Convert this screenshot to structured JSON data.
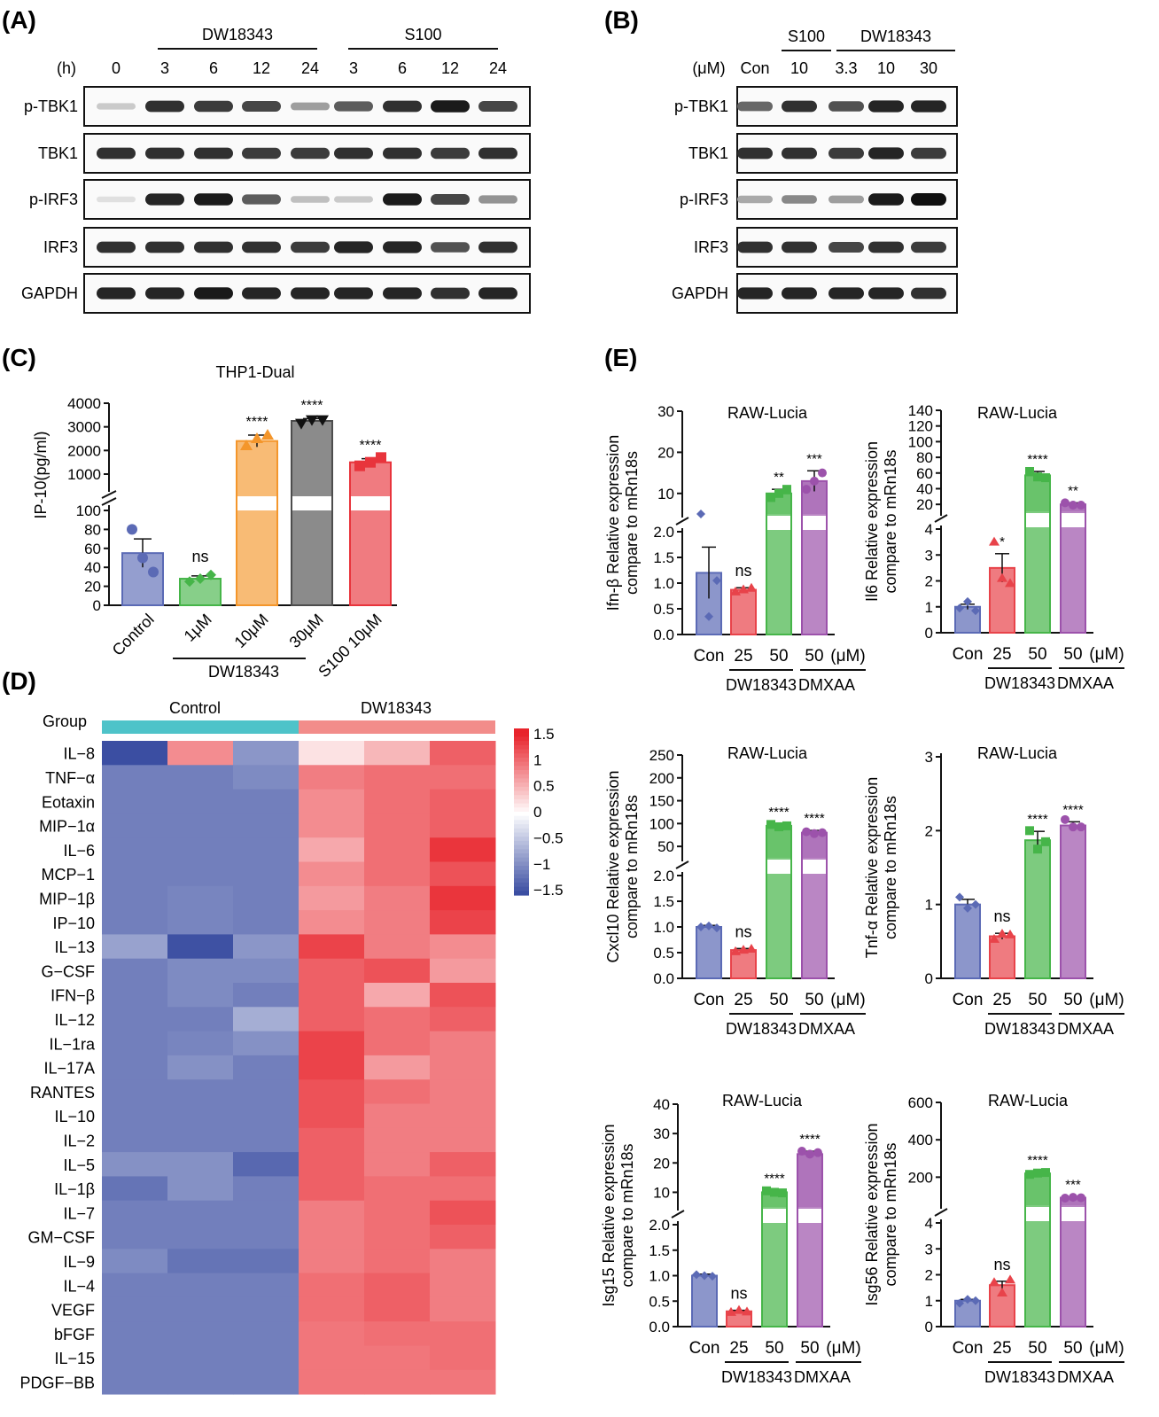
{
  "colors": {
    "con": "#5b6ab5",
    "dw25": "#e8434a",
    "dw50": "#46b549",
    "dmxaa": "#9c52ab",
    "c1": "#5b6ab5",
    "c2": "#46b549",
    "c3": "#f4962b",
    "c4": "#4d4d4d",
    "c5": "#e8343c",
    "grpControl": "#4ec3c9",
    "grpDW": "#f28c8a",
    "heatLow": "#3b4ea2",
    "heatMid": "#ffffff",
    "heatHigh": "#e8232b"
  },
  "panelA": {
    "label": "(A)",
    "groups": [
      "DW18343",
      "S100"
    ],
    "time_unit": "(h)",
    "lanes": [
      "0",
      "3",
      "6",
      "12",
      "24",
      "3",
      "6",
      "12",
      "24"
    ],
    "rows": [
      "p-TBK1",
      "TBK1",
      "p-IRF3",
      "IRF3",
      "GAPDH"
    ],
    "bands": [
      [
        0.15,
        0.85,
        0.8,
        0.75,
        0.35,
        0.65,
        0.85,
        0.95,
        0.75
      ],
      [
        0.85,
        0.85,
        0.85,
        0.8,
        0.8,
        0.85,
        0.85,
        0.8,
        0.85
      ],
      [
        0.05,
        0.9,
        0.95,
        0.65,
        0.2,
        0.15,
        0.95,
        0.75,
        0.4
      ],
      [
        0.85,
        0.85,
        0.85,
        0.85,
        0.8,
        0.9,
        0.9,
        0.7,
        0.85
      ],
      [
        0.9,
        0.9,
        0.95,
        0.9,
        0.9,
        0.9,
        0.9,
        0.85,
        0.9
      ]
    ]
  },
  "panelB": {
    "label": "(B)",
    "groups": [
      "S100",
      "DW18343"
    ],
    "conc_unit": "(μM)",
    "lanes": [
      "Con",
      "10",
      "3.3",
      "10",
      "30"
    ],
    "rows": [
      "p-TBK1",
      "TBK1",
      "p-IRF3",
      "IRF3",
      "GAPDH"
    ],
    "bands": [
      [
        0.6,
        0.85,
        0.7,
        0.9,
        0.9
      ],
      [
        0.85,
        0.85,
        0.8,
        0.9,
        0.8
      ],
      [
        0.3,
        0.45,
        0.35,
        0.95,
        1.0
      ],
      [
        0.85,
        0.85,
        0.75,
        0.85,
        0.8
      ],
      [
        0.9,
        0.9,
        0.9,
        0.9,
        0.85
      ]
    ]
  },
  "panelC": {
    "label": "(C)",
    "chart_data": {
      "type": "bar",
      "title": "THP1-Dual",
      "ylabel": "IP-10(pg/ml)",
      "categories": [
        "Control",
        "1μM",
        "10μM",
        "30μM",
        "S100 10μM"
      ],
      "values": [
        55,
        28,
        2400,
        3250,
        1500
      ],
      "errors": [
        15,
        3,
        250,
        100,
        150
      ],
      "points": [
        [
          80,
          50,
          35
        ],
        [
          25,
          28,
          32
        ],
        [
          2200,
          2500,
          2650
        ],
        [
          3150,
          3300,
          3300
        ],
        [
          1350,
          1500,
          1700
        ]
      ],
      "significance": [
        "",
        "ns",
        "****",
        "****",
        "****"
      ],
      "lower_ticks": [
        0,
        20,
        40,
        60,
        80,
        100
      ],
      "upper_ticks": [
        1000,
        2000,
        3000,
        4000
      ],
      "group_label": "DW18343"
    }
  },
  "panelD": {
    "label": "(D)",
    "group_title": "Group",
    "groups": [
      "Control",
      "DW18343"
    ],
    "legend_ticks": [
      "1.5",
      "1",
      "0.5",
      "0",
      "−0.5",
      "−1",
      "−1.5"
    ],
    "chart_data": {
      "type": "heatmap",
      "rows": [
        "IL−8",
        "TNF−α",
        "Eotaxin",
        "MIP−1α",
        "IL−6",
        "MCP−1",
        "MIP−1β",
        "IP−10",
        "IL−13",
        "G−CSF",
        "IFN−β",
        "IL−12",
        "IL−1ra",
        "IL−17A",
        "RANTES",
        "IL−10",
        "IL−2",
        "IL−5",
        "IL−1β",
        "IL−7",
        "GM−CSF",
        "IL−9",
        "IL−4",
        "VEGF",
        "bFGF",
        "IL−15",
        "PDGF−BB"
      ],
      "values": [
        [
          -1.6,
          0.8,
          -0.9,
          0.2,
          0.5,
          1.1
        ],
        [
          -1.1,
          -1.1,
          -1.0,
          0.9,
          1.0,
          1.0
        ],
        [
          -1.1,
          -1.1,
          -1.1,
          0.8,
          1.0,
          1.1
        ],
        [
          -1.1,
          -1.1,
          -1.1,
          0.8,
          1.0,
          1.1
        ],
        [
          -1.1,
          -1.1,
          -1.1,
          0.6,
          1.0,
          1.4
        ],
        [
          -1.1,
          -1.1,
          -1.1,
          0.8,
          1.0,
          1.2
        ],
        [
          -1.1,
          -1.05,
          -1.1,
          0.7,
          0.9,
          1.4
        ],
        [
          -1.1,
          -1.05,
          -1.1,
          0.8,
          0.9,
          1.3
        ],
        [
          -0.8,
          -1.5,
          -0.9,
          1.3,
          0.9,
          0.8
        ],
        [
          -1.1,
          -1.0,
          -1.0,
          1.1,
          1.2,
          0.7
        ],
        [
          -1.1,
          -1.0,
          -1.1,
          1.1,
          0.6,
          1.2
        ],
        [
          -1.1,
          -1.1,
          -0.7,
          1.1,
          1.0,
          1.1
        ],
        [
          -1.1,
          -1.05,
          -0.95,
          1.3,
          1.0,
          0.9
        ],
        [
          -1.1,
          -0.95,
          -1.1,
          1.3,
          0.7,
          0.9
        ],
        [
          -1.1,
          -1.1,
          -1.1,
          1.2,
          1.0,
          0.9
        ],
        [
          -1.1,
          -1.1,
          -1.1,
          1.2,
          0.9,
          0.9
        ],
        [
          -1.1,
          -1.1,
          -1.1,
          1.1,
          0.9,
          0.9
        ],
        [
          -0.95,
          -0.95,
          -1.3,
          1.1,
          0.9,
          1.1
        ],
        [
          -1.2,
          -0.95,
          -1.1,
          1.1,
          1.0,
          1.0
        ],
        [
          -1.1,
          -1.1,
          -1.1,
          0.9,
          1.0,
          1.2
        ],
        [
          -1.1,
          -1.1,
          -1.1,
          0.9,
          1.0,
          1.1
        ],
        [
          -1.0,
          -1.2,
          -1.2,
          0.9,
          1.0,
          0.9
        ],
        [
          -1.1,
          -1.1,
          -1.1,
          1.0,
          1.1,
          0.9
        ],
        [
          -1.1,
          -1.1,
          -1.1,
          1.0,
          1.1,
          0.9
        ],
        [
          -1.1,
          -1.1,
          -1.1,
          0.95,
          1.0,
          1.0
        ],
        [
          -1.1,
          -1.1,
          -1.1,
          0.95,
          0.95,
          1.0
        ],
        [
          -1.1,
          -1.1,
          -1.1,
          0.95,
          0.95,
          0.95
        ]
      ]
    }
  },
  "panelE": {
    "label": "(E)",
    "x_tick_labels": [
      "Con",
      "25",
      "50",
      "50",
      "(μM)"
    ],
    "x_group_labels": [
      "DW18343",
      "DMXAA"
    ],
    "chart_data": [
      {
        "type": "bar",
        "title": "RAW-Lucia",
        "ylabel": [
          "Ifn-β Relative expression",
          "compare to mRn18s"
        ],
        "categories": [
          "Con",
          "25",
          "50",
          "50"
        ],
        "values": [
          1.2,
          0.87,
          10,
          13
        ],
        "errors": [
          0.5,
          0.04,
          1,
          2.5
        ],
        "points": [
          [
            2.3,
            0.35,
            1.05
          ],
          [
            0.83,
            0.87,
            0.9
          ],
          [
            9,
            10,
            11
          ],
          [
            11,
            13,
            15
          ]
        ],
        "significance": [
          "",
          "ns",
          "**",
          "***"
        ],
        "lower_ticks": [
          "0.0",
          "0.5",
          "1.0",
          "1.5",
          "2.0"
        ],
        "upper_ticks": [
          "10",
          "20",
          "30"
        ]
      },
      {
        "type": "bar",
        "title": "RAW-Lucia",
        "ylabel": [
          "Il6 Relative expression",
          "compare to mRn18s"
        ],
        "categories": [
          "Con",
          "25",
          "50",
          "50"
        ],
        "values": [
          1,
          2.5,
          57,
          20
        ],
        "errors": [
          0.1,
          0.55,
          5,
          2
        ],
        "points": [
          [
            0.95,
            1.2,
            0.85
          ],
          [
            3.5,
            2.1,
            1.9
          ],
          [
            62,
            55,
            54
          ],
          [
            22,
            19,
            19
          ]
        ],
        "significance": [
          "",
          "*",
          "****",
          "**"
        ],
        "lower_ticks": [
          "0",
          "1",
          "2",
          "3",
          "4"
        ],
        "upper_ticks": [
          "20",
          "40",
          "60",
          "80",
          "100",
          "120",
          "140"
        ]
      },
      {
        "type": "bar",
        "title": "RAW-Lucia",
        "ylabel": [
          "Cxcl10 Relative expression",
          "compare to mRn18s"
        ],
        "categories": [
          "Con",
          "25",
          "50",
          "50"
        ],
        "values": [
          1,
          0.55,
          95,
          80
        ],
        "errors": [
          0.03,
          0.03,
          4,
          5
        ],
        "points": [
          [
            1,
            1.02,
            0.98
          ],
          [
            0.52,
            0.55,
            0.57
          ],
          [
            98,
            93,
            95
          ],
          [
            82,
            78,
            80
          ]
        ],
        "significance": [
          "",
          "ns",
          "****",
          "****"
        ],
        "lower_ticks": [
          "0.0",
          "0.5",
          "1.0",
          "1.5",
          "2.0"
        ],
        "upper_ticks": [
          "50",
          "100",
          "150",
          "200",
          "250"
        ]
      },
      {
        "type": "bar",
        "title": "RAW-Lucia",
        "ylabel": [
          "Tnf-α Relative expression",
          "compare to mRn18s"
        ],
        "categories": [
          "Con",
          "25",
          "50",
          "50"
        ],
        "values": [
          1,
          0.57,
          1.87,
          2.07
        ],
        "errors": [
          0.07,
          0.04,
          0.12,
          0.05
        ],
        "points": [
          [
            1.1,
            0.95,
            1.0
          ],
          [
            0.53,
            0.6,
            0.59
          ],
          [
            2.0,
            1.75,
            1.85
          ],
          [
            2.15,
            2.05,
            2.05
          ]
        ],
        "significance": [
          "",
          "ns",
          "****",
          "****"
        ],
        "lower_ticks": [
          "0",
          "1",
          "2",
          "3"
        ],
        "upper_ticks": []
      },
      {
        "type": "bar",
        "title": "RAW-Lucia",
        "ylabel": [
          "Isg15 Relative expression",
          "compare to mRn18s"
        ],
        "categories": [
          "Con",
          "25",
          "50",
          "50"
        ],
        "values": [
          1,
          0.3,
          10,
          23
        ],
        "errors": [
          0.03,
          0.02,
          0.6,
          1
        ],
        "points": [
          [
            1.02,
            1.0,
            0.99
          ],
          [
            0.28,
            0.32,
            0.29
          ],
          [
            10.5,
            10,
            9.8
          ],
          [
            24,
            23,
            23.5
          ]
        ],
        "significance": [
          "",
          "ns",
          "****",
          "****"
        ],
        "lower_ticks": [
          "0.0",
          "0.5",
          "1.0",
          "1.5",
          "2.0"
        ],
        "upper_ticks": [
          "10",
          "20",
          "30",
          "40"
        ]
      },
      {
        "type": "bar",
        "title": "RAW-Lucia",
        "ylabel": [
          "Isg56 Relative expression",
          "compare to mRn18s"
        ],
        "categories": [
          "Con",
          "25",
          "50",
          "50"
        ],
        "values": [
          1,
          1.6,
          220,
          90
        ],
        "errors": [
          0.05,
          0.15,
          5,
          4
        ],
        "points": [
          [
            0.9,
            1.05,
            1.0
          ],
          [
            1.7,
            1.3,
            1.8
          ],
          [
            215,
            222,
            225
          ],
          [
            88,
            92,
            90
          ]
        ],
        "significance": [
          "",
          "ns",
          "****",
          "***"
        ],
        "lower_ticks": [
          "0",
          "1",
          "2",
          "3",
          "4"
        ],
        "upper_ticks": [
          "200",
          "400",
          "600"
        ]
      }
    ]
  }
}
